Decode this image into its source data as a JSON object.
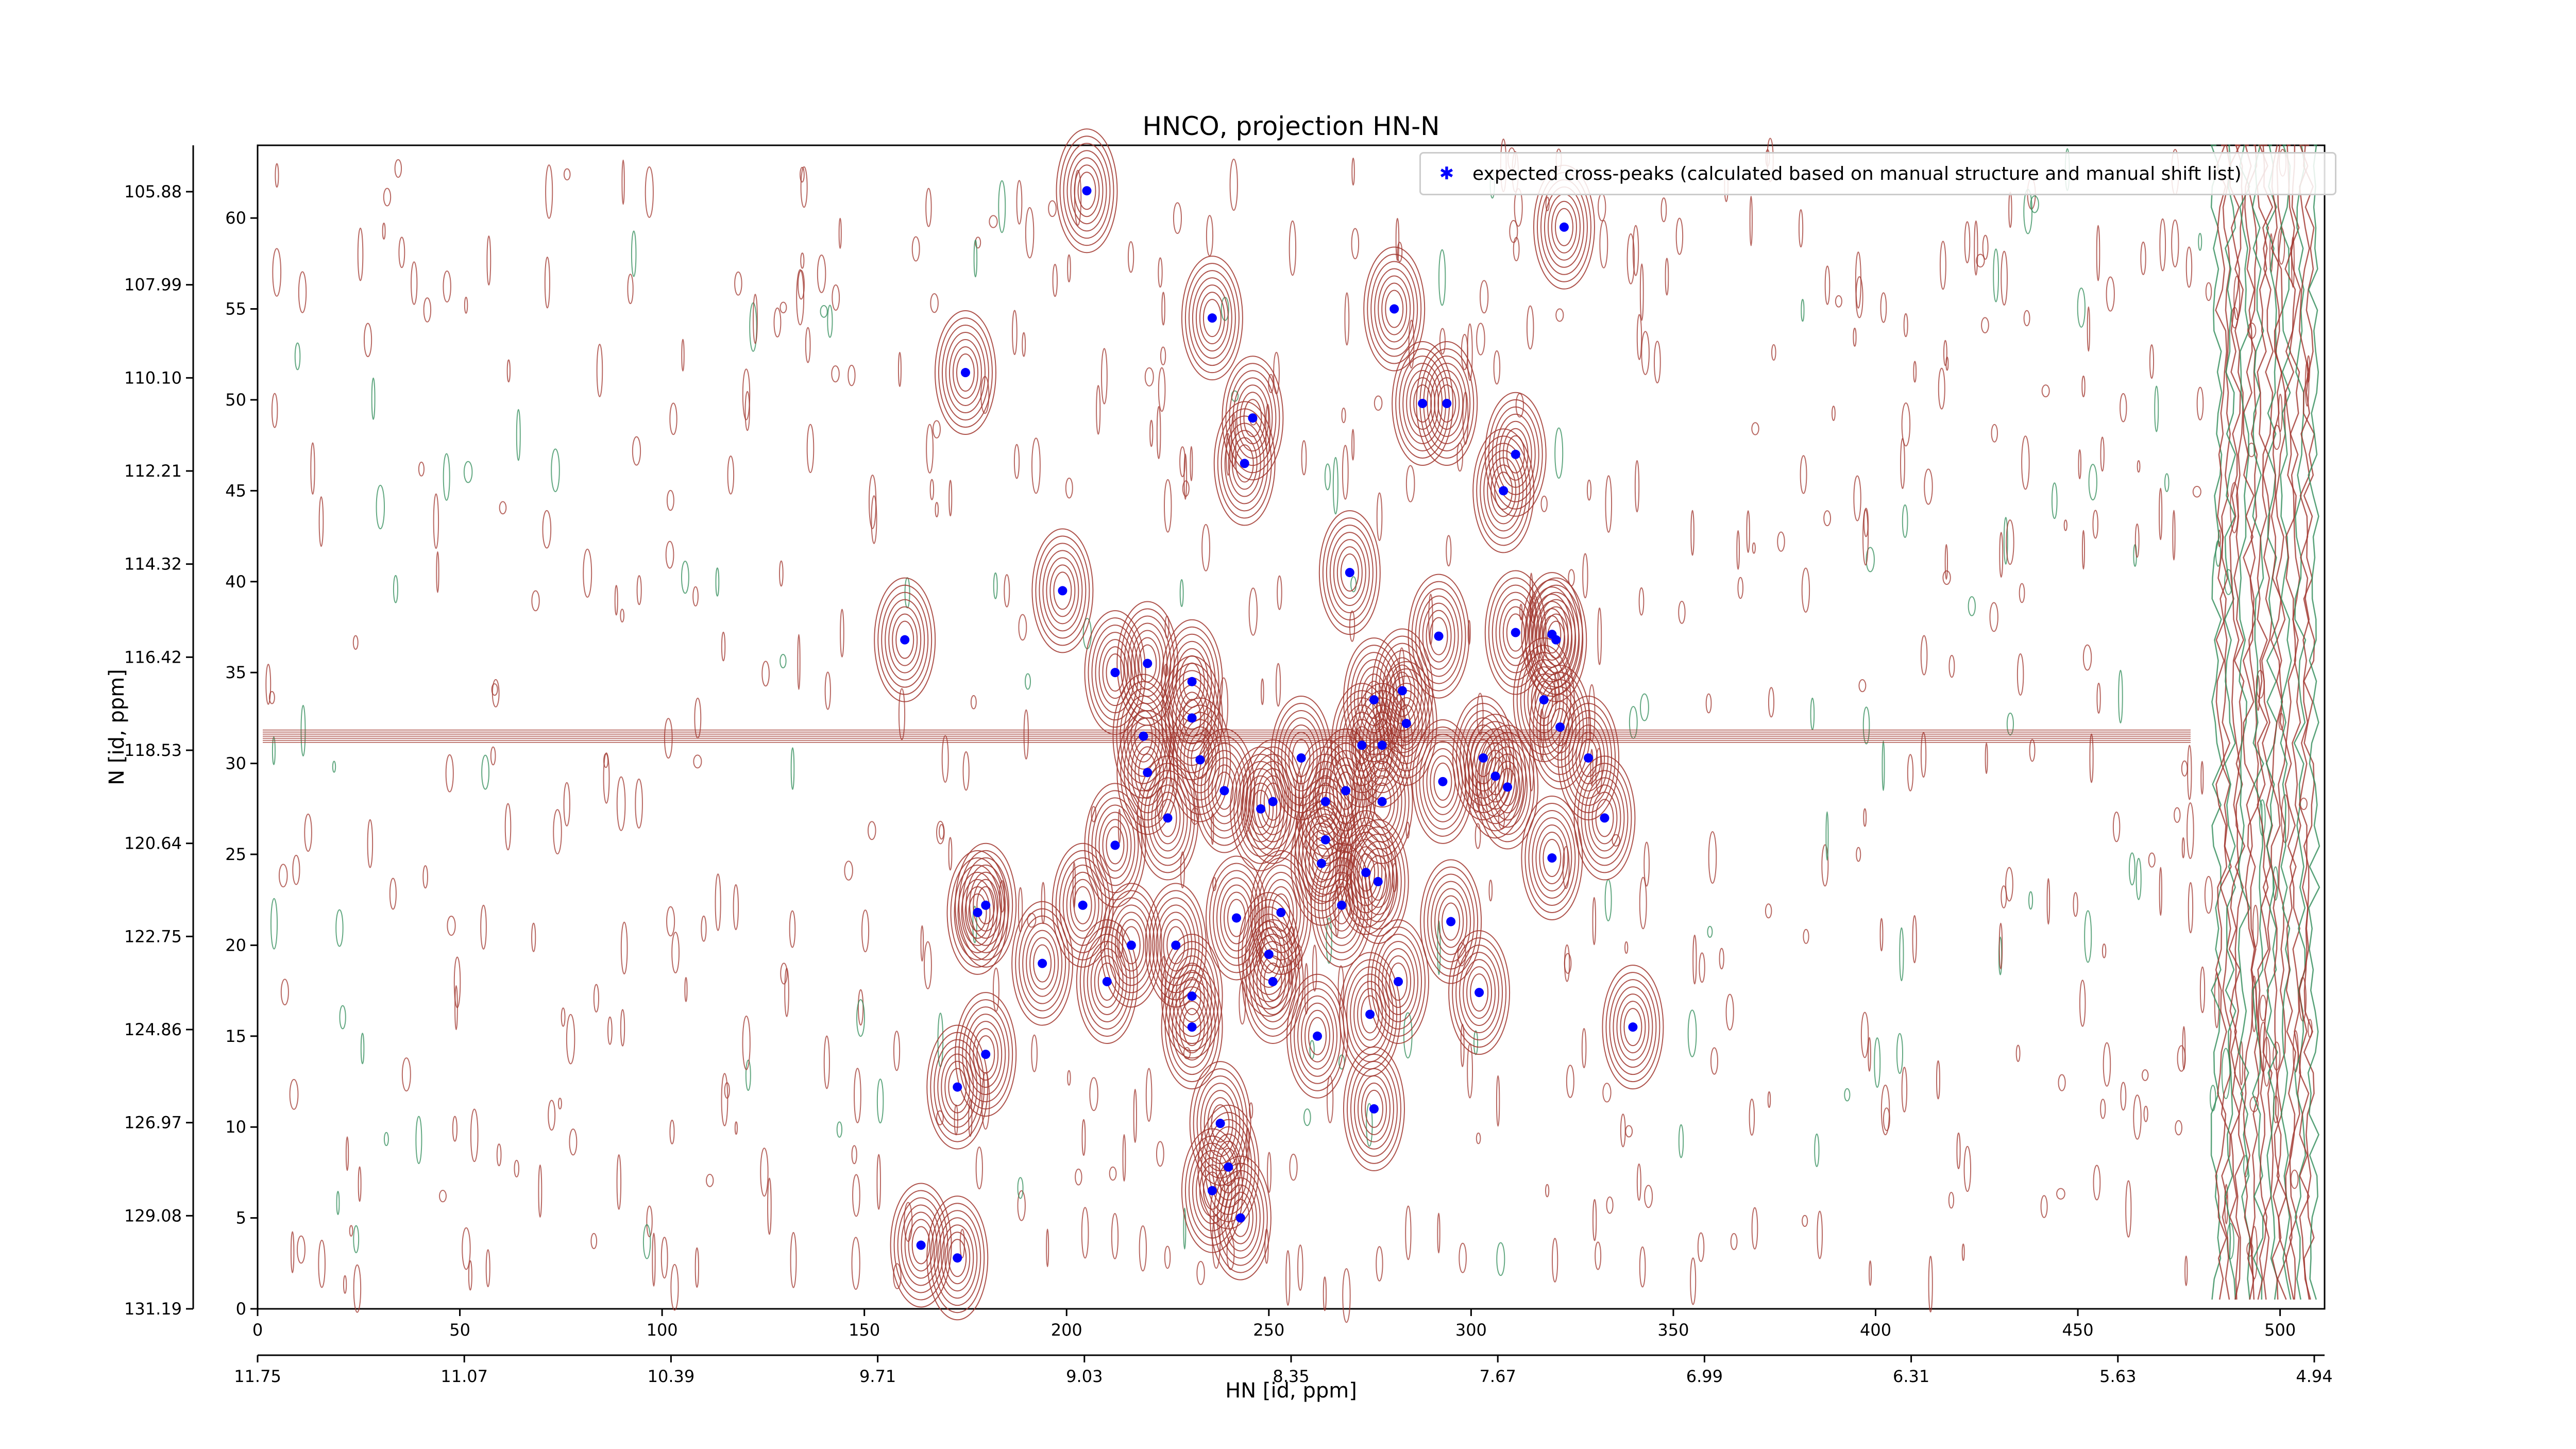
{
  "chart_data": {
    "type": "scatter",
    "title": "HNCO, projection HN-N",
    "xlabel": "HN [id, ppm]",
    "ylabel": "N [id, ppm]",
    "x_index_range": [
      0,
      511
    ],
    "y_index_range": [
      0,
      64
    ],
    "x_index_ticks": [
      0,
      50,
      100,
      150,
      200,
      250,
      300,
      350,
      400,
      450,
      500
    ],
    "y_index_ticks": [
      0,
      5,
      10,
      15,
      20,
      25,
      30,
      35,
      40,
      45,
      50,
      55,
      60
    ],
    "x_ppm_ticks": [
      "11.75",
      "11.07",
      "10.39",
      "9.71",
      "9.03",
      "8.35",
      "7.67",
      "6.99",
      "6.31",
      "5.63",
      "4.94"
    ],
    "y_ppm_ticks": [
      "131.19",
      "129.08",
      "126.97",
      "124.86",
      "122.75",
      "120.64",
      "118.53",
      "116.42",
      "114.32",
      "112.21",
      "110.10",
      "107.99",
      "105.88"
    ],
    "legend": {
      "placement": "top-right",
      "entries": [
        "expected cross-peaks (calculated based on manual structure and manual shift list)"
      ]
    },
    "colors": {
      "positive": "#a0352d",
      "negative": "#2e8b57",
      "marker": "#0000ff"
    },
    "series": [
      {
        "name": "expected cross-peaks (calculated based on manual structure and manual shift list)",
        "x": [
          205,
          323,
          236,
          281,
          175,
          246,
          288,
          294,
          244,
          311,
          308,
          270,
          199,
          160,
          292,
          311,
          320,
          321,
          212,
          220,
          231,
          231,
          283,
          276,
          318,
          322,
          219,
          233,
          284,
          273,
          278,
          293,
          258,
          303,
          306,
          309,
          329,
          220,
          269,
          239,
          248,
          251,
          264,
          225,
          212,
          264,
          278,
          320,
          263,
          333,
          274,
          277,
          178,
          180,
          204,
          242,
          253,
          268,
          295,
          216,
          227,
          250,
          194,
          282,
          210,
          251,
          231,
          302,
          275,
          231,
          340,
          180,
          262,
          173,
          238,
          276,
          240,
          236,
          243,
          164,
          173
        ],
        "y": [
          61.5,
          59.5,
          54.5,
          55.0,
          51.5,
          49.0,
          49.8,
          49.8,
          46.5,
          47.0,
          45.0,
          40.5,
          39.5,
          36.8,
          37.0,
          37.2,
          37.1,
          36.8,
          35.0,
          35.5,
          34.5,
          32.5,
          34.0,
          33.5,
          33.5,
          32.0,
          31.5,
          30.2,
          32.2,
          31.0,
          31.0,
          29.0,
          30.3,
          30.3,
          29.3,
          28.7,
          30.3,
          29.5,
          28.5,
          28.5,
          27.5,
          27.9,
          27.9,
          27.0,
          25.5,
          25.8,
          27.9,
          24.8,
          24.5,
          27.0,
          24.0,
          23.5,
          21.8,
          22.2,
          22.2,
          21.5,
          21.8,
          22.2,
          21.3,
          20.0,
          20.0,
          19.5,
          19.0,
          18.0,
          18.0,
          18.0,
          17.2,
          17.4,
          16.2,
          15.5,
          15.5,
          14.0,
          15.0,
          12.2,
          10.2,
          11.0,
          7.8,
          6.5,
          5.0,
          3.5,
          2.8
        ]
      }
    ]
  }
}
